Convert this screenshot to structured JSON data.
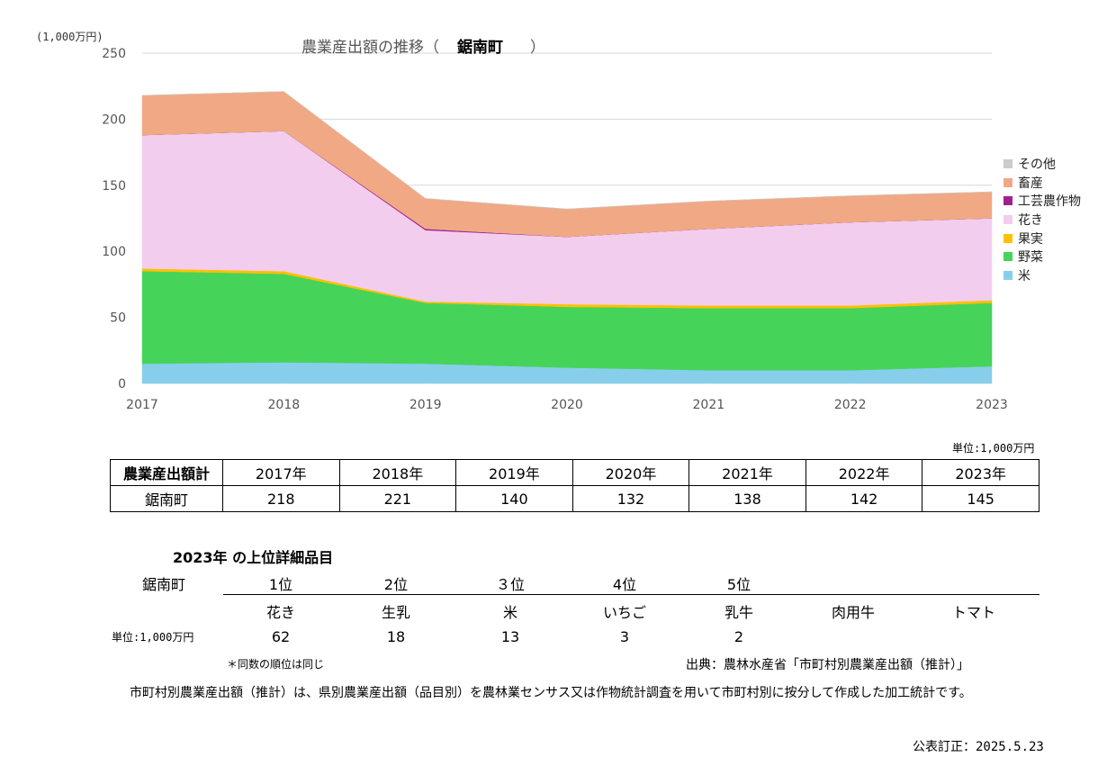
{
  "chart_data": {
    "type": "area",
    "stacked": true,
    "title_prefix": "農業産出額の推移（",
    "title_name": "鋸南町",
    "title_suffix": "）",
    "y_unit": "(1,000万円)",
    "x": [
      "2017",
      "2018",
      "2019",
      "2020",
      "2021",
      "2022",
      "2023"
    ],
    "yticks": [
      0,
      50,
      100,
      150,
      200,
      250
    ],
    "ylim": [
      0,
      250
    ],
    "grid": true,
    "legend_position": "right",
    "series": [
      {
        "name": "米",
        "color": "#87ceeb",
        "values": [
          15,
          16,
          15,
          12,
          10,
          10,
          13
        ]
      },
      {
        "name": "野菜",
        "color": "#46d35a",
        "values": [
          70,
          67,
          46,
          46,
          47,
          47,
          48
        ]
      },
      {
        "name": "果実",
        "color": "#ffc000",
        "values": [
          2,
          2,
          1,
          2,
          2,
          2,
          2
        ]
      },
      {
        "name": "花き",
        "color": "#f2cdee",
        "values": [
          101,
          106,
          54,
          51,
          58,
          63,
          62
        ]
      },
      {
        "name": "工芸農作物",
        "color": "#a02090",
        "values": [
          0,
          0,
          1,
          0,
          0,
          0,
          0
        ]
      },
      {
        "name": "畜産",
        "color": "#f0a984",
        "values": [
          30,
          30,
          23,
          21,
          21,
          20,
          20
        ]
      },
      {
        "name": "その他",
        "color": "#cccccc",
        "values": [
          0,
          0,
          0,
          0,
          0,
          0,
          0
        ]
      }
    ]
  },
  "totals_table": {
    "unit": "単位:1,000万円",
    "header": "農業産出額計",
    "years": [
      "2017年",
      "2018年",
      "2019年",
      "2020年",
      "2021年",
      "2022年",
      "2023年"
    ],
    "municipality": "鋸南町",
    "values": [
      "218",
      "221",
      "140",
      "132",
      "138",
      "142",
      "145"
    ]
  },
  "ranking": {
    "title": "2023年 の上位詳細品目",
    "municipality": "鋸南町",
    "unit": "単位:1,000万円",
    "positions": [
      "1位",
      "2位",
      "３位",
      "4位",
      "5位"
    ],
    "items": [
      "花き",
      "生乳",
      "米",
      "いちご",
      "乳牛",
      "肉用牛",
      "トマト"
    ],
    "values": [
      "62",
      "18",
      "13",
      "3",
      "2"
    ]
  },
  "notes": {
    "tie_note": "＊同数の順位は同じ",
    "source": "出典：農林水産省「市町村別農業産出額（推計）」",
    "description": "市町村別農業産出額（推計）は、県別農業産出額（品目別）を農林業センサス又は作物統計調査を用いて市町村別に按分して作成した加工統計です。",
    "revised": "公表訂正：2025.5.23"
  }
}
